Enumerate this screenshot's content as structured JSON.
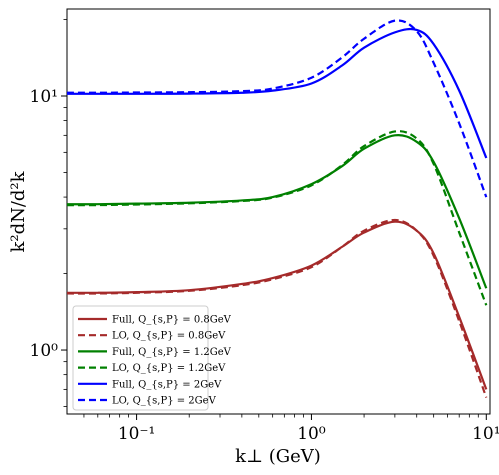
{
  "chart_data": {
    "type": "line",
    "xlabel": "k⊥ (GeV)",
    "ylabel": "k²dN/d²k",
    "xscale": "log",
    "yscale": "log",
    "xlim": [
      0.04,
      10.5
    ],
    "ylim": [
      0.56,
      22
    ],
    "grid": false,
    "legend_position": "lower-left",
    "x_ticks": [
      {
        "value": 0.1,
        "label": "10⁻¹"
      },
      {
        "value": 1,
        "label": "10⁰"
      },
      {
        "value": 10,
        "label": "10¹"
      }
    ],
    "y_ticks": [
      {
        "value": 1,
        "label": "10⁰"
      },
      {
        "value": 10,
        "label": "10¹"
      }
    ],
    "x": [
      0.04,
      0.06,
      0.1,
      0.2,
      0.4,
      0.6,
      1.0,
      1.5,
      2.0,
      3.0,
      4.0,
      5.0,
      7.0,
      10.0
    ],
    "series": [
      {
        "name": "Full, Q_{s,P} = 0.8GeV",
        "color": "#a52a2a",
        "dash": "solid",
        "values": [
          1.68,
          1.68,
          1.69,
          1.72,
          1.82,
          1.92,
          2.15,
          2.55,
          2.9,
          3.2,
          2.95,
          2.4,
          1.35,
          0.7
        ]
      },
      {
        "name": "LO, Q_{s,P} = 0.8GeV",
        "color": "#a52a2a",
        "dash": "dashed",
        "values": [
          1.67,
          1.67,
          1.68,
          1.71,
          1.8,
          1.9,
          2.12,
          2.55,
          2.95,
          3.25,
          2.95,
          2.35,
          1.3,
          0.65
        ]
      },
      {
        "name": "Full, Q_{s,P} = 1.2GeV",
        "color": "#008000",
        "dash": "solid",
        "values": [
          3.75,
          3.75,
          3.77,
          3.8,
          3.88,
          4.0,
          4.5,
          5.3,
          6.2,
          7.0,
          6.6,
          5.5,
          3.3,
          1.75
        ]
      },
      {
        "name": "LO, Q_{s,P} = 1.2GeV",
        "color": "#008000",
        "dash": "dashed",
        "values": [
          3.72,
          3.72,
          3.74,
          3.78,
          3.86,
          3.98,
          4.45,
          5.35,
          6.35,
          7.25,
          6.8,
          5.4,
          2.9,
          1.5
        ]
      },
      {
        "name": "Full, Q_{s,P} = 2GeV",
        "color": "#0000ff",
        "dash": "solid",
        "values": [
          10.2,
          10.2,
          10.2,
          10.22,
          10.3,
          10.5,
          11.2,
          13.2,
          15.5,
          17.8,
          18.2,
          16.0,
          10.5,
          5.7
        ]
      },
      {
        "name": "LO, Q_{s,P} = 2GeV",
        "color": "#0000ff",
        "dash": "dashed",
        "values": [
          10.3,
          10.3,
          10.32,
          10.35,
          10.45,
          10.7,
          11.8,
          14.2,
          16.8,
          19.8,
          18.0,
          13.5,
          7.8,
          4.0
        ]
      }
    ]
  }
}
